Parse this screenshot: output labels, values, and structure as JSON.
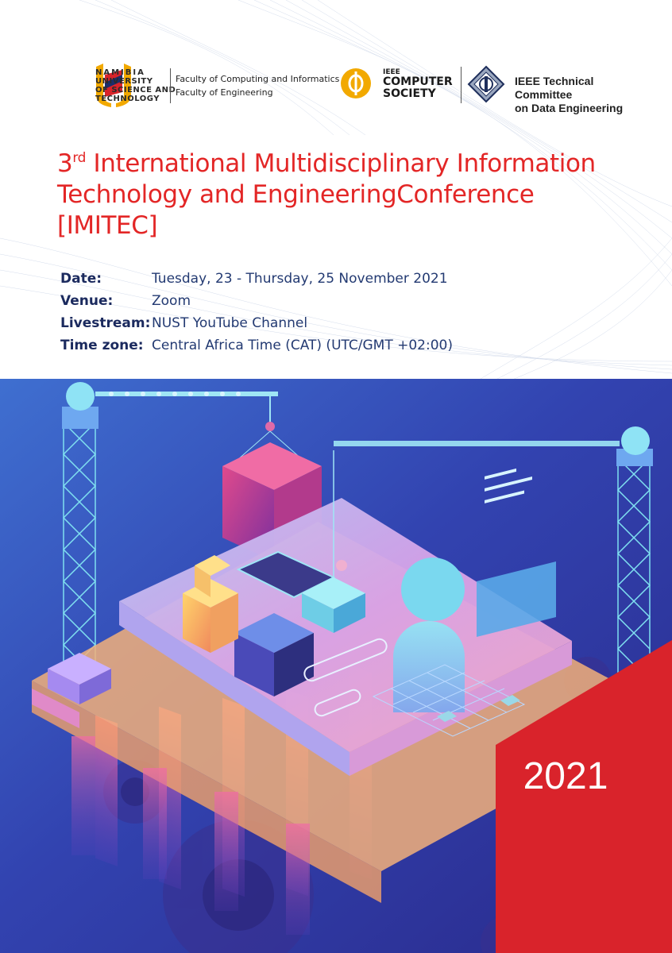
{
  "header": {
    "nust": {
      "lines": [
        "NAMIBIA",
        "UNIVERSITY",
        "OF SCIENCE AND",
        "TECHNOLOGY"
      ]
    },
    "faculties": [
      "Faculty of Computing and  Informatics",
      "Faculty of Engineering"
    ],
    "ieee_cs": {
      "ieee": "IEEE",
      "line1": "COMPUTER",
      "line2": "SOCIETY"
    },
    "tcde": {
      "line1": "IEEE Technical Committee",
      "line2": "on Data Engineering"
    }
  },
  "title": {
    "ordinal_num": "3",
    "ordinal_suffix": "rd",
    "line1_rest": " International Multidisciplinary Information",
    "line2": "Technology and EngineeringConference",
    "line3": "[IMITEC]"
  },
  "details": [
    {
      "label": "Date:",
      "value": "Tuesday, 23 - Thursday, 25 November 2021"
    },
    {
      "label": "Venue:",
      "value": "Zoom"
    },
    {
      "label": "Livestream:",
      "value": "NUST YouTube Channel"
    },
    {
      "label": "Time zone:",
      "value": "Central Africa Time (CAT) (UTC/GMT +02:00)"
    }
  ],
  "year": "2021",
  "colors": {
    "title_red": "#e32626",
    "detail_navy": "#1b2a5e",
    "banner_red": "#d9232b",
    "background_blue": "#2f3aa8"
  }
}
